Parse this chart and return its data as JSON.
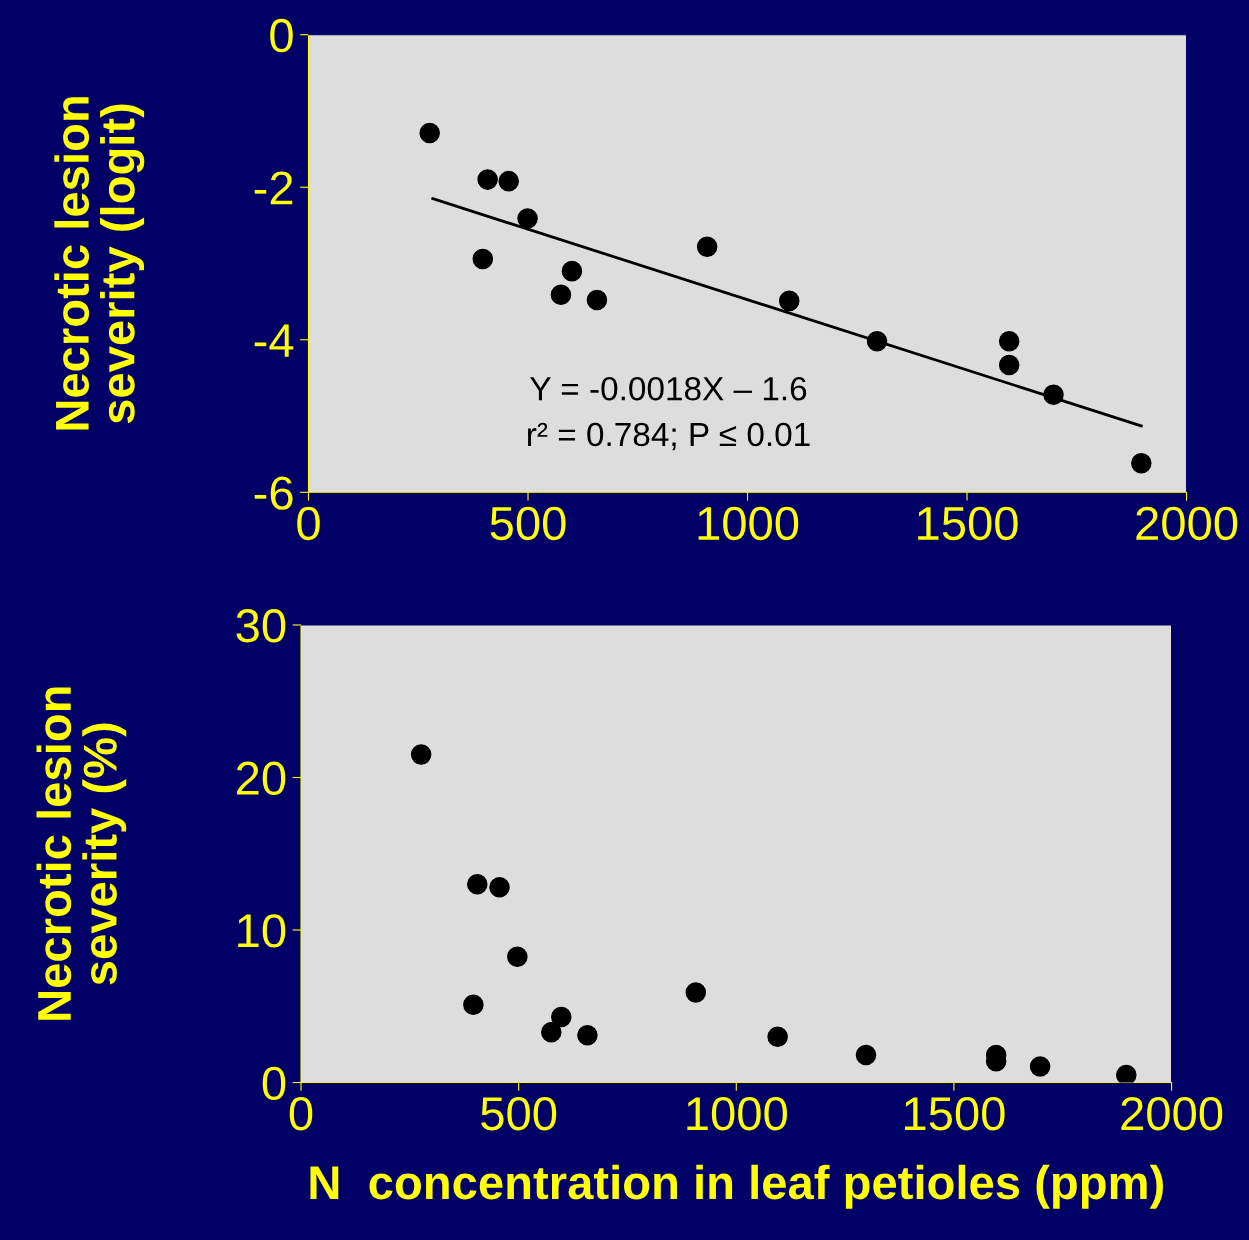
{
  "chart_data": [
    {
      "type": "scatter",
      "ylabel": "Necrotic lesion\nseverity (logit)",
      "xlim": [
        0,
        2000
      ],
      "xticks": [
        0,
        500,
        1000,
        1500,
        2000
      ],
      "ylim": [
        -6,
        0
      ],
      "yticks": [
        -6,
        -4,
        -2,
        0
      ],
      "grid": false,
      "legend": false,
      "series": [
        {
          "marker": "circle",
          "color": "#000000",
          "x": [
            276,
            408,
            456,
            499,
            397,
            600,
            575,
            657,
            908,
            1095,
            1295,
            1596,
            1596,
            1697,
            1897
          ],
          "values": [
            -1.29,
            -1.9,
            -1.92,
            -2.41,
            -2.94,
            -3.1,
            -3.41,
            -3.48,
            -2.78,
            -3.49,
            -4.02,
            -4.02,
            -4.33,
            -4.72,
            -5.62
          ]
        },
        {
          "type": "line",
          "marker": "none",
          "color": "#000000",
          "x": [
            283,
            1897
          ],
          "values": [
            -2.15,
            -5.13
          ]
        }
      ],
      "annotations": [
        "Y = -0.0018X – 1.6",
        "r² = 0.784; P ≤ 0.01"
      ]
    },
    {
      "type": "scatter",
      "ylabel": "Necrotic lesion\nseverity (%)",
      "xlabel": "N  concentration in leaf petioles (ppm)",
      "xlim": [
        0,
        2000
      ],
      "xticks": [
        0,
        500,
        1000,
        1500,
        2000
      ],
      "ylim": [
        0,
        30
      ],
      "yticks": [
        0,
        10,
        20,
        30
      ],
      "grid": false,
      "legend": false,
      "marker": "circle",
      "series": [
        {
          "color": "#000000",
          "x": [
            276,
            405,
            456,
            497,
            396,
            598,
            575,
            658,
            907,
            1095,
            1298,
            1597,
            1597,
            1698,
            1896
          ],
          "values": [
            21.5,
            13.0,
            12.8,
            8.25,
            5.1,
            4.3,
            3.3,
            3.1,
            5.9,
            3.0,
            1.8,
            1.8,
            1.4,
            1.05,
            0.5
          ]
        }
      ]
    }
  ]
}
